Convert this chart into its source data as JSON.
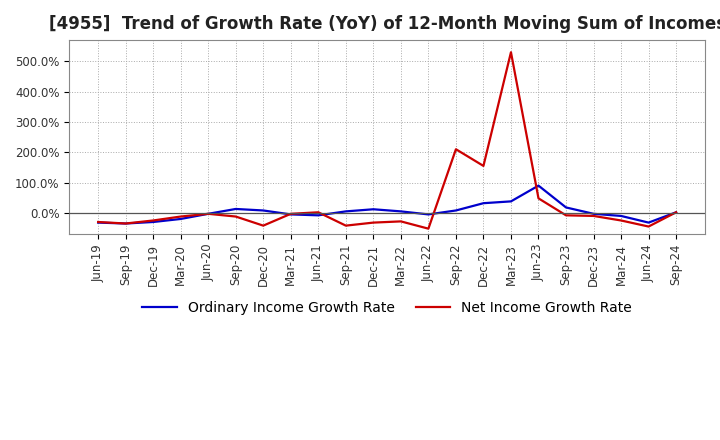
{
  "title": "[4955]  Trend of Growth Rate (YoY) of 12-Month Moving Sum of Incomes",
  "x_labels": [
    "Jun-19",
    "Sep-19",
    "Dec-19",
    "Mar-20",
    "Jun-20",
    "Sep-20",
    "Dec-20",
    "Mar-21",
    "Jun-21",
    "Sep-21",
    "Dec-21",
    "Mar-22",
    "Jun-22",
    "Sep-22",
    "Dec-22",
    "Mar-23",
    "Jun-23",
    "Sep-23",
    "Dec-23",
    "Mar-24",
    "Jun-24",
    "Sep-24"
  ],
  "ordinary_income": [
    -32,
    -35,
    -30,
    -20,
    -3,
    13,
    8,
    -5,
    -8,
    5,
    12,
    5,
    -5,
    8,
    32,
    38,
    90,
    18,
    -3,
    -10,
    -32,
    2
  ],
  "net_income": [
    -30,
    -35,
    -25,
    -12,
    -3,
    -12,
    -42,
    -3,
    2,
    -42,
    -32,
    -28,
    -52,
    210,
    155,
    530,
    48,
    -8,
    -10,
    -25,
    -45,
    2
  ],
  "ordinary_color": "#0000cc",
  "net_color": "#cc0000",
  "bg_color": "#ffffff",
  "plot_bg_color": "#ffffff",
  "ylim": [
    -70,
    570
  ],
  "yticks": [
    0,
    100,
    200,
    300,
    400,
    500
  ],
  "ytick_labels": [
    "0.0%",
    "100.0%",
    "200.0%",
    "300.0%",
    "400.0%",
    "500.0%"
  ],
  "legend_ordinary": "Ordinary Income Growth Rate",
  "legend_net": "Net Income Growth Rate",
  "title_fontsize": 12,
  "legend_fontsize": 10,
  "tick_fontsize": 8.5
}
